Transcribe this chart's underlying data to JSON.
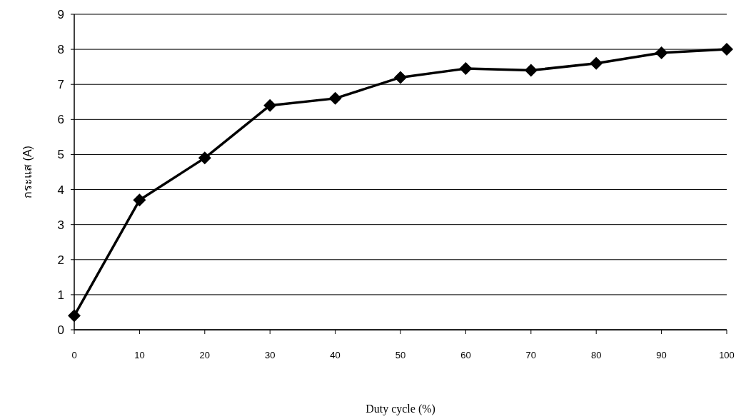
{
  "chart_data": {
    "type": "line",
    "xlabel": "Duty cycle  (%)",
    "ylabel": "กระแส (A)",
    "x": [
      0,
      10,
      20,
      30,
      40,
      50,
      60,
      70,
      80,
      90,
      100
    ],
    "series": [
      {
        "color": "#000000",
        "values": [
          0.4,
          3.7,
          4.9,
          6.4,
          6.6,
          7.2,
          7.45,
          7.4,
          7.6,
          7.9,
          8.0
        ]
      }
    ],
    "xlim": [
      0,
      100
    ],
    "ylim": [
      0,
      9
    ],
    "xticks": [
      0,
      10,
      20,
      30,
      40,
      50,
      60,
      70,
      80,
      90,
      100
    ],
    "yticks": [
      0,
      1,
      2,
      3,
      4,
      5,
      6,
      7,
      8,
      9
    ],
    "grid": "y",
    "marker": "diamond",
    "line_style": "solid"
  }
}
